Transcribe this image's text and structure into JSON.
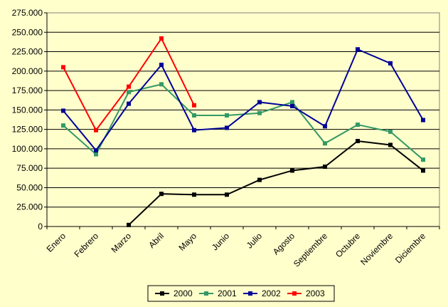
{
  "chart_data": {
    "type": "line",
    "categories": [
      "Enero",
      "Febrero",
      "Marzo",
      "Abril",
      "Mayo",
      "Junio",
      "Julio",
      "Agosto",
      "Septiembre",
      "Octubre",
      "Noviembre",
      "Diciembre"
    ],
    "y_ticks": [
      "0",
      "25.000",
      "50.000",
      "75.000",
      "100.000",
      "125.000",
      "150.000",
      "175.000",
      "200.000",
      "225.000",
      "250.000",
      "275.000"
    ],
    "ylim": [
      0,
      275000
    ],
    "grid": "horizontal",
    "legend": "bottom",
    "series": [
      {
        "name": "2000",
        "color": "#000000",
        "values": [
          null,
          null,
          2000,
          42000,
          41000,
          41000,
          60000,
          72000,
          77000,
          110000,
          105000,
          72000
        ]
      },
      {
        "name": "2001",
        "color": "#339966",
        "values": [
          130000,
          93000,
          173000,
          183000,
          143000,
          143000,
          146000,
          160000,
          107000,
          131000,
          122000,
          86000
        ]
      },
      {
        "name": "2002",
        "color": "#000099",
        "values": [
          149000,
          98000,
          158000,
          208000,
          124000,
          127000,
          160000,
          155000,
          129000,
          228000,
          210000,
          137000
        ]
      },
      {
        "name": "2003",
        "color": "#ff0000",
        "values": [
          205000,
          124000,
          180000,
          242000,
          156000,
          null,
          null,
          null,
          null,
          null,
          null,
          null
        ]
      }
    ]
  }
}
